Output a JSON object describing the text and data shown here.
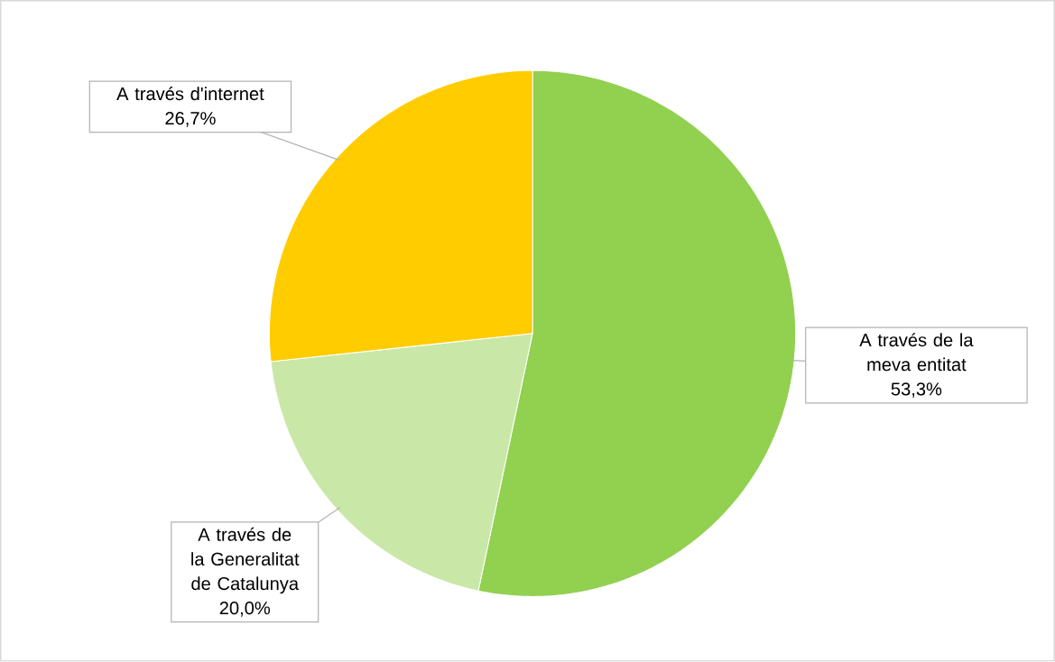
{
  "chart_data": {
    "type": "pie",
    "categories": [
      "A través de la meva entitat",
      "A través de la Generalitat de Catalunya",
      "A través d'internet"
    ],
    "values": [
      53.3,
      20.0,
      26.7
    ],
    "colors": [
      "#92d050",
      "#c9e7a7",
      "#ffcc00"
    ],
    "value_labels": [
      "53,3%",
      "20,0%",
      "26,7%"
    ]
  }
}
